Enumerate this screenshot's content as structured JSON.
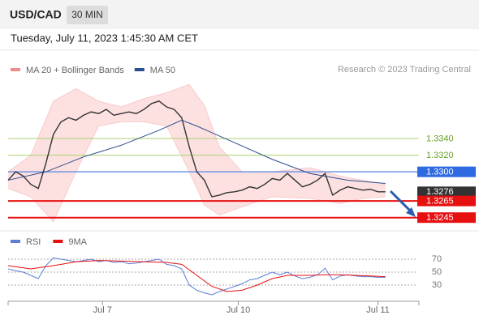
{
  "header": {
    "symbol": "USD/CAD",
    "timeframe": "30 MIN",
    "timestamp": "Tuesday, July 11, 2023 1:45:30 AM CET"
  },
  "chart_data": [
    {
      "type": "line",
      "copyright": "Research © 2023 Trading Central",
      "xlim": [
        0,
        54
      ],
      "ylim": [
        1.3234,
        1.3414
      ],
      "series": [
        {
          "name": "MA 20 + Bollinger Bands",
          "color": "#f28c8c",
          "band_color": "#fde0e0",
          "x": [
            0,
            3,
            6,
            9,
            12,
            15,
            18,
            21,
            24,
            26,
            28,
            31,
            35,
            40,
            44,
            47,
            50
          ],
          "upper": [
            1.33,
            1.332,
            1.3385,
            1.34,
            1.3385,
            1.3378,
            1.3388,
            1.3395,
            1.3405,
            1.338,
            1.333,
            1.33,
            1.33,
            1.3305,
            1.3295,
            1.329,
            1.3285
          ],
          "lower": [
            1.328,
            1.327,
            1.324,
            1.33,
            1.3355,
            1.336,
            1.336,
            1.3355,
            1.33,
            1.326,
            1.3248,
            1.3258,
            1.327,
            1.3268,
            1.3262,
            1.3268,
            1.327
          ]
        },
        {
          "name": "MA 50",
          "color": "#2d4e8e",
          "x": [
            0,
            5,
            10,
            15,
            20,
            23,
            25,
            30,
            35,
            40,
            45,
            50
          ],
          "values": [
            1.329,
            1.33,
            1.3318,
            1.3332,
            1.335,
            1.3362,
            1.3355,
            1.3335,
            1.3315,
            1.3298,
            1.329,
            1.3286
          ]
        },
        {
          "color": "#333333",
          "x": [
            0,
            1,
            2,
            3,
            4,
            5,
            6,
            7,
            8,
            9,
            10,
            11,
            12,
            13,
            14,
            15,
            16,
            17,
            18,
            19,
            20,
            21,
            22,
            23,
            24,
            25,
            26,
            27,
            28,
            29,
            30,
            31,
            32,
            33,
            34,
            35,
            36,
            37,
            38,
            39,
            40,
            41,
            42,
            43,
            44,
            45,
            46,
            47,
            48,
            49,
            50
          ],
          "values": [
            1.329,
            1.33,
            1.3295,
            1.3285,
            1.328,
            1.331,
            1.3345,
            1.336,
            1.3365,
            1.3362,
            1.3368,
            1.3372,
            1.337,
            1.3375,
            1.3368,
            1.337,
            1.3372,
            1.337,
            1.3375,
            1.3382,
            1.3385,
            1.3378,
            1.3375,
            1.3365,
            1.333,
            1.33,
            1.329,
            1.327,
            1.3272,
            1.3275,
            1.3276,
            1.3278,
            1.3282,
            1.328,
            1.3285,
            1.3292,
            1.329,
            1.3298,
            1.329,
            1.3282,
            1.3285,
            1.329,
            1.3298,
            1.3272,
            1.3278,
            1.3282,
            1.328,
            1.3278,
            1.3279,
            1.3276,
            1.3276
          ]
        }
      ],
      "levels": [
        {
          "value": 1.334,
          "label": "1.3340",
          "color": "#6aa121",
          "line_color": "#a9d36e",
          "boxed": false
        },
        {
          "value": 1.332,
          "label": "1.3320",
          "color": "#6aa121",
          "line_color": "#a9d36e",
          "boxed": false
        },
        {
          "value": 1.33,
          "label": "1.3300",
          "color": "#2f6be0",
          "line_color": "#6f93e6",
          "boxed": true
        },
        {
          "value": 1.3276,
          "label": "1.3276",
          "color": "#333333",
          "line_color": null,
          "boxed": true
        },
        {
          "value": 1.3265,
          "label": "1.3265",
          "color": "#e61010",
          "line_color": "#e61010",
          "boxed": true
        },
        {
          "value": 1.3245,
          "label": "1.3245",
          "color": "#e61010",
          "line_color": "#e61010",
          "boxed": true
        }
      ]
    },
    {
      "type": "line",
      "xlim": [
        0,
        54
      ],
      "ylim": [
        7.5,
        82.5
      ],
      "yticks": [
        70,
        50,
        30
      ],
      "xticks": [
        {
          "value": 12.5,
          "label": "Jul 7"
        },
        {
          "value": 30.5,
          "label": "Jul 10"
        },
        {
          "value": 49,
          "label": "Jul 11"
        }
      ],
      "series": [
        {
          "name": "RSI",
          "color": "#5b7fd6",
          "x": [
            0,
            1,
            2,
            3,
            4,
            5,
            6,
            7,
            8,
            9,
            10,
            11,
            12,
            13,
            14,
            15,
            16,
            17,
            18,
            19,
            20,
            21,
            22,
            23,
            24,
            25,
            26,
            27,
            28,
            29,
            30,
            31,
            32,
            33,
            34,
            35,
            36,
            37,
            38,
            39,
            40,
            41,
            42,
            43,
            44,
            45,
            46,
            47,
            48,
            49,
            50
          ],
          "values": [
            55,
            52,
            50,
            45,
            40,
            60,
            72,
            70,
            68,
            66,
            68,
            70,
            66,
            68,
            65,
            66,
            63,
            64,
            66,
            68,
            70,
            62,
            60,
            55,
            30,
            22,
            18,
            15,
            20,
            24,
            28,
            32,
            38,
            40,
            45,
            50,
            46,
            50,
            44,
            40,
            42,
            46,
            56,
            38,
            44,
            46,
            44,
            43,
            43,
            42,
            42
          ]
        },
        {
          "name": "9MA",
          "color": "#e61010",
          "x": [
            0,
            3,
            6,
            9,
            12,
            15,
            18,
            21,
            23,
            25,
            27,
            29,
            31,
            33,
            35,
            37,
            40,
            42,
            44,
            46,
            48,
            50
          ],
          "values": [
            60,
            55,
            60,
            66,
            68,
            67,
            66,
            65,
            62,
            45,
            28,
            20,
            22,
            30,
            40,
            45,
            45,
            46,
            46,
            45,
            44,
            43
          ]
        }
      ]
    }
  ]
}
